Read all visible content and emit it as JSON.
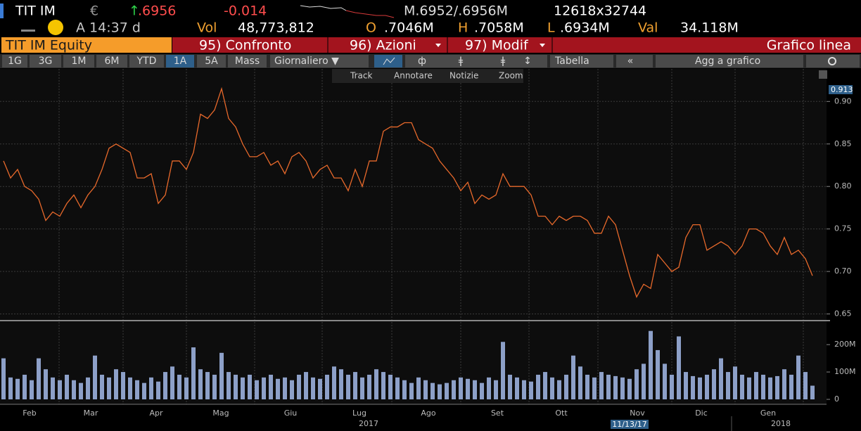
{
  "header": {
    "ticker": "TIT IM",
    "currency": "€",
    "arrow": "↑",
    "last": ".6956",
    "change": "-0.014",
    "bid_ask": "M.6952/.6956M",
    "sizes": "12618x32744",
    "time": "A 14:37 d",
    "vol_label": "Vol",
    "vol": "48,773,812",
    "open_label": "O",
    "open": ".7046M",
    "high_label": "H",
    "high": ".7058M",
    "low_label": "L",
    "low": ".6934M",
    "val_label": "Val",
    "val": "34.118M"
  },
  "menu": {
    "security": "TIT IM Equity",
    "items": [
      "95) Confronto",
      "96) Azioni",
      "97) Modif"
    ],
    "view": "Grafico linea"
  },
  "toolbar": {
    "periods": [
      "1G",
      "3G",
      "1M",
      "6M",
      "YTD",
      "1A",
      "5A",
      "Mass"
    ],
    "selected_period": 5,
    "frequency": "Giornaliero ▼",
    "table": "Tabella",
    "back": "«",
    "add": "Agg a grafico",
    "tools": [
      "Track",
      "Annotare",
      "Notizie",
      "Zoom"
    ]
  },
  "x_axis": {
    "months": [
      "Feb",
      "Mar",
      "Apr",
      "Mag",
      "Giu",
      "Lug",
      "Ago",
      "Set",
      "Ott",
      "Nov",
      "Dic",
      "Gen"
    ],
    "years": [
      "2017",
      "2018"
    ],
    "date_box": "11/13/17"
  },
  "chart_data": [
    {
      "type": "line",
      "color": "#e8692b",
      "ylim": [
        0.643,
        0.935
      ],
      "yticks": [
        0.65,
        {
          "value": 0.7,
          "label": "0.70"
        },
        0.75,
        {
          "value": 0.8,
          "label": "0.80"
        },
        0.85,
        {
          "value": 0.9,
          "label": "0.90"
        }
      ],
      "grid": true,
      "annotation": "0.913",
      "values": [
        0.83,
        0.81,
        0.82,
        0.8,
        0.795,
        0.785,
        0.76,
        0.77,
        0.765,
        0.78,
        0.79,
        0.775,
        0.79,
        0.8,
        0.82,
        0.845,
        0.85,
        0.845,
        0.84,
        0.81,
        0.81,
        0.815,
        0.78,
        0.79,
        0.83,
        0.83,
        0.82,
        0.84,
        0.885,
        0.88,
        0.89,
        0.915,
        0.88,
        0.87,
        0.85,
        0.835,
        0.835,
        0.84,
        0.825,
        0.83,
        0.815,
        0.835,
        0.84,
        0.83,
        0.81,
        0.82,
        0.825,
        0.81,
        0.81,
        0.795,
        0.82,
        0.8,
        0.83,
        0.83,
        0.865,
        0.87,
        0.87,
        0.875,
        0.875,
        0.855,
        0.85,
        0.845,
        0.83,
        0.82,
        0.81,
        0.795,
        0.805,
        0.78,
        0.79,
        0.785,
        0.79,
        0.815,
        0.8,
        0.8,
        0.8,
        0.79,
        0.765,
        0.765,
        0.755,
        0.765,
        0.76,
        0.765,
        0.765,
        0.76,
        0.745,
        0.745,
        0.765,
        0.755,
        0.725,
        0.695,
        0.67,
        0.685,
        0.68,
        0.72,
        0.71,
        0.7,
        0.705,
        0.74,
        0.755,
        0.755,
        0.725,
        0.73,
        0.735,
        0.73,
        0.72,
        0.73,
        0.75,
        0.75,
        0.745,
        0.73,
        0.72,
        0.74,
        0.72,
        0.725,
        0.715,
        0.695
      ]
    },
    {
      "type": "bar",
      "color": "#8da0c8",
      "ylim": [
        0,
        280
      ],
      "yticks": [
        0,
        {
          "value": 100,
          "label": "100M"
        },
        {
          "value": 200,
          "label": "200M"
        }
      ],
      "values": [
        150,
        80,
        75,
        90,
        70,
        150,
        110,
        80,
        70,
        90,
        70,
        60,
        80,
        160,
        90,
        80,
        110,
        100,
        80,
        70,
        60,
        80,
        65,
        100,
        120,
        90,
        80,
        190,
        110,
        100,
        90,
        170,
        100,
        90,
        80,
        90,
        70,
        80,
        90,
        75,
        80,
        70,
        90,
        100,
        80,
        75,
        90,
        120,
        110,
        90,
        100,
        80,
        90,
        110,
        100,
        90,
        80,
        70,
        60,
        80,
        70,
        60,
        55,
        60,
        70,
        80,
        75,
        70,
        60,
        80,
        70,
        210,
        90,
        80,
        70,
        65,
        90,
        100,
        80,
        70,
        90,
        160,
        120,
        90,
        80,
        100,
        90,
        85,
        80,
        75,
        110,
        130,
        250,
        180,
        130,
        90,
        230,
        100,
        85,
        80,
        90,
        110,
        150,
        100,
        120,
        90,
        80,
        100,
        90,
        80,
        85,
        110,
        90,
        160,
        100,
        50
      ]
    }
  ]
}
